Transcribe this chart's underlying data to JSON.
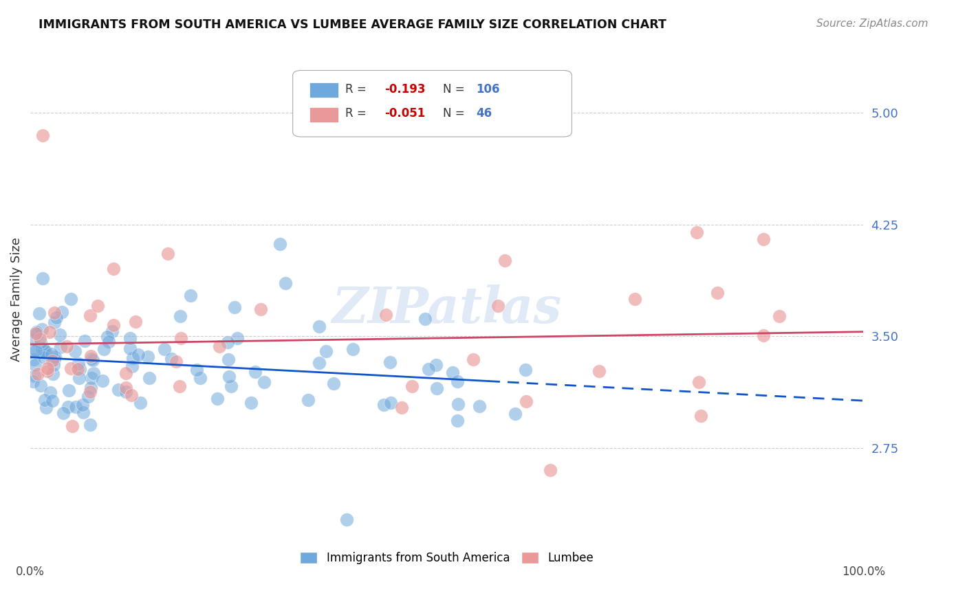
{
  "title": "IMMIGRANTS FROM SOUTH AMERICA VS LUMBEE AVERAGE FAMILY SIZE CORRELATION CHART",
  "source": "Source: ZipAtlas.com",
  "ylabel": "Average Family Size",
  "right_ytick_labels": [
    "5.00",
    "4.25",
    "3.50",
    "2.75"
  ],
  "right_ytick_values": [
    5.0,
    4.25,
    3.5,
    2.75
  ],
  "xlim": [
    0.0,
    100.0
  ],
  "ylim": [
    2.1,
    5.4
  ],
  "blue_R": "-0.193",
  "blue_N": "106",
  "pink_R": "-0.051",
  "pink_N": "46",
  "blue_color": "#6fa8dc",
  "pink_color": "#ea9999",
  "blue_line_color": "#1155cc",
  "pink_line_color": "#cc4466",
  "watermark": "ZIPatlas",
  "legend_label_blue": "Immigrants from South America",
  "legend_label_pink": "Lumbee"
}
